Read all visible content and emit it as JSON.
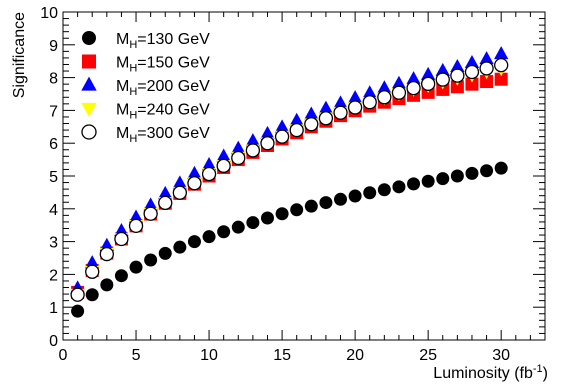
{
  "chart_data": {
    "type": "scatter",
    "xlabel": "Luminosity (fb",
    "xlabel_sup": "-1",
    "xlabel_close": ")",
    "ylabel": "Significance",
    "xlim": [
      0,
      33
    ],
    "ylim": [
      0,
      10
    ],
    "x_ticks": [
      "0",
      "5",
      "10",
      "15",
      "20",
      "25",
      "30"
    ],
    "y_ticks": [
      "0",
      "1",
      "2",
      "3",
      "4",
      "5",
      "6",
      "7",
      "8",
      "9",
      "10"
    ],
    "legend_position": "top-left",
    "x": [
      1,
      2,
      3,
      4,
      5,
      6,
      7,
      8,
      9,
      10,
      11,
      12,
      13,
      14,
      15,
      16,
      17,
      18,
      19,
      20,
      21,
      22,
      23,
      24,
      25,
      26,
      27,
      28,
      29,
      30
    ],
    "series": [
      {
        "label_main": "M",
        "label_sub": "H",
        "label_rest": "=130 GeV",
        "marker": "circle",
        "color": "#000000",
        "values": [
          0.88,
          1.38,
          1.68,
          1.96,
          2.22,
          2.44,
          2.64,
          2.83,
          3.0,
          3.15,
          3.3,
          3.44,
          3.58,
          3.72,
          3.85,
          3.97,
          4.08,
          4.19,
          4.29,
          4.39,
          4.49,
          4.58,
          4.67,
          4.76,
          4.84,
          4.92,
          5.0,
          5.08,
          5.16,
          5.24
        ]
      },
      {
        "label_main": "M",
        "label_sub": "H",
        "label_rest": "=150 GeV",
        "marker": "square",
        "color": "#ff0000",
        "values": [
          1.45,
          2.12,
          2.65,
          3.08,
          3.48,
          3.84,
          4.17,
          4.47,
          4.75,
          5.0,
          5.26,
          5.5,
          5.72,
          5.93,
          6.13,
          6.32,
          6.5,
          6.67,
          6.84,
          6.99,
          7.13,
          7.25,
          7.36,
          7.46,
          7.55,
          7.64,
          7.72,
          7.8,
          7.88,
          7.95
        ]
      },
      {
        "label_main": "M",
        "label_sub": "H",
        "label_rest": "=200 GeV",
        "marker": "triangle-up",
        "color": "#0000ff",
        "values": [
          1.58,
          2.35,
          2.88,
          3.33,
          3.74,
          4.11,
          4.46,
          4.78,
          5.07,
          5.34,
          5.6,
          5.84,
          6.07,
          6.29,
          6.49,
          6.69,
          6.88,
          7.06,
          7.22,
          7.38,
          7.53,
          7.68,
          7.82,
          7.96,
          8.09,
          8.21,
          8.33,
          8.45,
          8.57,
          8.72
        ]
      },
      {
        "label_main": "M",
        "label_sub": "H",
        "label_rest": "=240 GeV",
        "marker": "triangle-down",
        "color": "#ffff00",
        "values": [
          1.4,
          2.1,
          2.65,
          3.1,
          3.5,
          3.87,
          4.2,
          4.51,
          4.8,
          5.08,
          5.33,
          5.58,
          5.8,
          6.02,
          6.22,
          6.42,
          6.6,
          6.78,
          6.95,
          7.1,
          7.25,
          7.39,
          7.52,
          7.65,
          7.77,
          7.88,
          7.99,
          8.09,
          8.19,
          8.28
        ]
      },
      {
        "label_main": "M",
        "label_sub": "H",
        "label_rest": "=300 GeV",
        "marker": "open-circle",
        "color": "#000000",
        "values": [
          1.38,
          2.08,
          2.62,
          3.08,
          3.48,
          3.85,
          4.18,
          4.49,
          4.78,
          5.06,
          5.31,
          5.55,
          5.78,
          6.0,
          6.2,
          6.4,
          6.58,
          6.76,
          6.93,
          7.09,
          7.25,
          7.4,
          7.54,
          7.68,
          7.81,
          7.94,
          8.06,
          8.17,
          8.28,
          8.38
        ]
      }
    ]
  }
}
